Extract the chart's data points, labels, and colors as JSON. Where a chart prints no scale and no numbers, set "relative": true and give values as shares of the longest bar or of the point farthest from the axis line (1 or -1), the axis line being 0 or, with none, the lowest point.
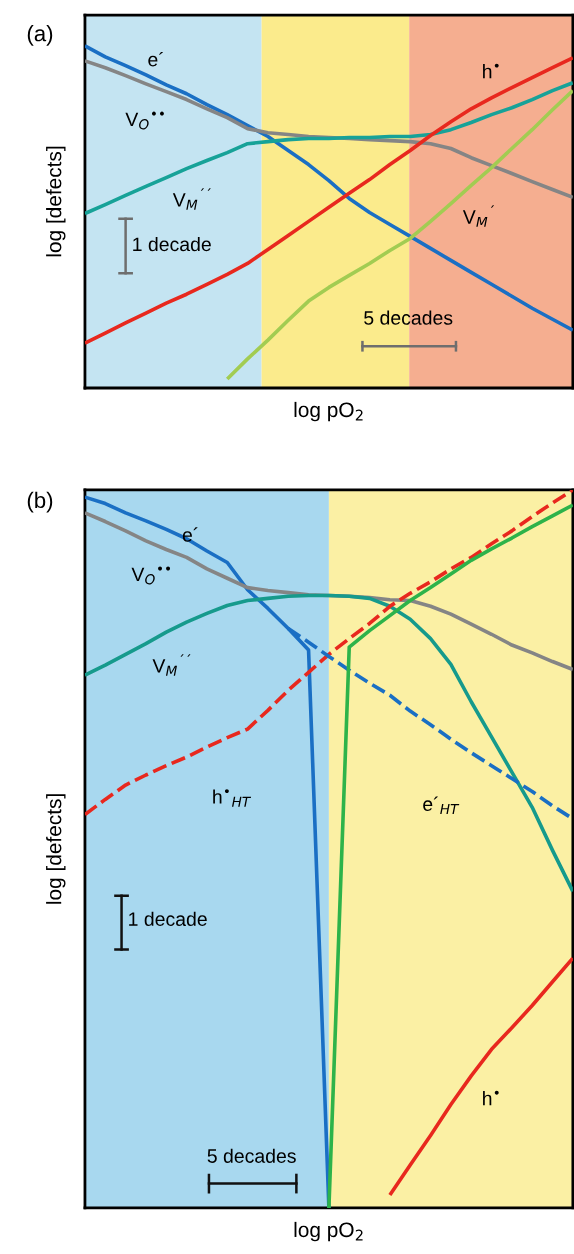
{
  "chart_data": [
    {
      "type": "line",
      "title": "(a)",
      "xlabel": "log pO$_{2}$",
      "ylabel": "log [defects]",
      "relative": true,
      "tick_labels": false,
      "legend": false,
      "grid": false,
      "marker": "none",
      "categories": [
        null,
        null,
        null,
        null,
        null,
        null,
        null,
        null,
        null,
        null,
        null,
        null,
        null,
        null,
        null,
        null,
        null,
        null,
        null,
        null,
        null,
        null,
        null,
        null,
        null
      ],
      "series": [
        {
          "name": "e´",
          "color": "#1a6fc4",
          "line_style": "solid",
          "values": [
            1.0,
            0.968,
            0.942,
            0.915,
            0.886,
            0.86,
            0.828,
            0.799,
            0.767,
            0.735,
            0.694,
            0.653,
            0.606,
            0.554,
            0.513,
            0.478,
            0.443,
            0.408,
            0.373,
            0.338,
            0.303,
            0.268,
            0.233,
            0.201,
            0.169
          ]
        },
        {
          "name": "V$_{O}$$^{••}$",
          "color": "#858585",
          "line_style": "solid",
          "values": [
            0.956,
            0.936,
            0.913,
            0.889,
            0.866,
            0.843,
            0.816,
            0.79,
            0.758,
            0.746,
            0.741,
            0.735,
            0.732,
            0.729,
            0.726,
            0.723,
            0.72,
            0.714,
            0.7,
            0.673,
            0.65,
            0.627,
            0.603,
            0.58,
            0.557
          ]
        },
        {
          "name": "V$_{M}$$^{´´}$",
          "color": "#17a298",
          "line_style": "solid",
          "values": [
            0.51,
            0.536,
            0.563,
            0.589,
            0.615,
            0.641,
            0.665,
            0.688,
            0.714,
            0.72,
            0.726,
            0.729,
            0.729,
            0.732,
            0.732,
            0.735,
            0.735,
            0.741,
            0.755,
            0.776,
            0.799,
            0.819,
            0.843,
            0.869,
            0.892
          ]
        },
        {
          "name": "h$^{•}$",
          "color": "#e8281e",
          "line_style": "solid",
          "values": [
            0.131,
            0.16,
            0.19,
            0.219,
            0.248,
            0.274,
            0.303,
            0.332,
            0.364,
            0.405,
            0.446,
            0.487,
            0.528,
            0.569,
            0.609,
            0.653,
            0.694,
            0.738,
            0.778,
            0.816,
            0.848,
            0.878,
            0.907,
            0.936,
            0.965
          ]
        },
        {
          "name": "V$_{M}$$^{´}$",
          "color": "#a2cc52",
          "line_style": "solid",
          "values": [
            null,
            null,
            null,
            null,
            null,
            null,
            null,
            0.026,
            0.085,
            0.14,
            0.198,
            0.254,
            0.294,
            0.329,
            0.364,
            0.402,
            0.437,
            0.487,
            0.539,
            0.592,
            0.644,
            0.7,
            0.755,
            0.813,
            0.869
          ]
        }
      ],
      "annotations": [
        "1 decade",
        "5 decades"
      ]
    },
    {
      "type": "line",
      "title": "(b)",
      "xlabel": "log pO$_{2}$",
      "ylabel": "log [defects]",
      "relative": true,
      "tick_labels": false,
      "legend": false,
      "grid": false,
      "marker": "none",
      "categories": [
        null,
        null,
        null,
        null,
        null,
        null,
        null,
        null,
        null,
        null,
        null,
        null,
        null,
        null,
        null,
        null,
        null,
        null,
        null,
        null,
        null,
        null,
        null,
        null,
        null
      ],
      "series": [
        {
          "name": "e´",
          "color": "#1a6fc4",
          "line_style": "solid",
          "values": [
            0.99,
            0.981,
            0.968,
            0.957,
            0.945,
            0.932,
            0.915,
            0.899,
            0.861,
            0.835,
            0.807,
            0.777,
            0,
            null,
            null,
            null,
            null,
            null,
            null,
            null,
            null,
            null,
            null,
            null,
            null
          ]
        },
        {
          "name": "V$_{O}$$^{••}$",
          "color": "#858585",
          "line_style": "solid",
          "values": [
            0.968,
            0.956,
            0.943,
            0.929,
            0.917,
            0.906,
            0.89,
            0.877,
            0.864,
            0.86,
            0.857,
            0.854,
            0.853,
            0.852,
            0.85,
            0.847,
            0.846,
            0.838,
            0.827,
            0.813,
            0.799,
            0.784,
            0.773,
            0.761,
            0.75
          ]
        },
        {
          "name": "V$_{M}$$^{´´}$",
          "color": "#169a8c",
          "line_style": "solid",
          "values": [
            0.742,
            0.756,
            0.771,
            0.786,
            0.802,
            0.816,
            0.828,
            0.839,
            0.846,
            0.849,
            0.852,
            0.853,
            0.853,
            0.852,
            0.849,
            0.838,
            0.82,
            0.793,
            0.757,
            0.705,
            0.656,
            0.607,
            0.558,
            0.498,
            0.441
          ]
        },
        {
          "name": "h$^{•}$$_{HT}$",
          "color": "#e8281e",
          "line_style": "dashed",
          "values": [
            0.548,
            0.569,
            0.589,
            0.603,
            0.616,
            0.628,
            0.642,
            0.655,
            0.667,
            0.693,
            0.721,
            0.746,
            0.771,
            0.793,
            0.814,
            0.838,
            0.856,
            0.872,
            0.89,
            0.906,
            0.925,
            0.943,
            0.963,
            0.982,
            1.0
          ]
        },
        {
          "name": "e´$_{HT}$",
          "color": "#1a6fc4",
          "line_style": "dashed",
          "values": [
            null,
            null,
            null,
            null,
            null,
            null,
            null,
            null,
            null,
            null,
            0.807,
            0.788,
            0.768,
            0.749,
            0.731,
            0.714,
            0.692,
            0.673,
            0.653,
            0.634,
            0.616,
            0.598,
            0.58,
            0.56,
            0.542
          ]
        },
        {
          "color": "#2db34a",
          "line_style": "solid",
          "values": [
            null,
            null,
            null,
            null,
            null,
            null,
            null,
            null,
            null,
            null,
            null,
            null,
            0,
            0.781,
            0.804,
            0.825,
            0.846,
            0.864,
            0.883,
            0.902,
            0.918,
            0.933,
            0.949,
            0.964,
            0.979
          ]
        },
        {
          "name": "h$^{•}$",
          "color": "#e8281e",
          "line_style": "solid",
          "values": [
            null,
            null,
            null,
            null,
            null,
            null,
            null,
            null,
            null,
            null,
            null,
            null,
            null,
            null,
            null,
            0.018,
            0.06,
            0.101,
            0.144,
            0.184,
            0.221,
            0.251,
            0.282,
            0.315,
            0.348
          ]
        }
      ],
      "annotations": [
        "1 decade",
        "5 decades"
      ]
    }
  ]
}
